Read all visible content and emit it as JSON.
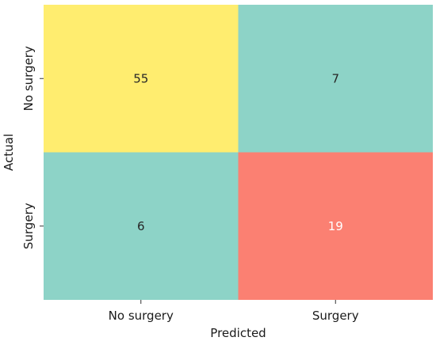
{
  "chart_data": {
    "type": "heatmap",
    "title": "",
    "xlabel": "Predicted",
    "ylabel": "Actual",
    "x_categories": [
      "No surgery",
      "Surgery"
    ],
    "y_categories": [
      "No surgery",
      "Surgery"
    ],
    "values": [
      [
        55,
        7
      ],
      [
        6,
        19
      ]
    ],
    "colormap": {
      "min_color": "#8dd3c7",
      "mid_color": "#ffed6f",
      "max_color": "#fb8072",
      "note_colors": {
        "55": "#ffed6f",
        "7": "#8dd3c7",
        "6": "#8dd3c7",
        "19": "#fb8072"
      }
    },
    "colorbar": false,
    "grid": false,
    "text_colors": {
      "dark": "#262626",
      "light": "#ffffff"
    }
  }
}
